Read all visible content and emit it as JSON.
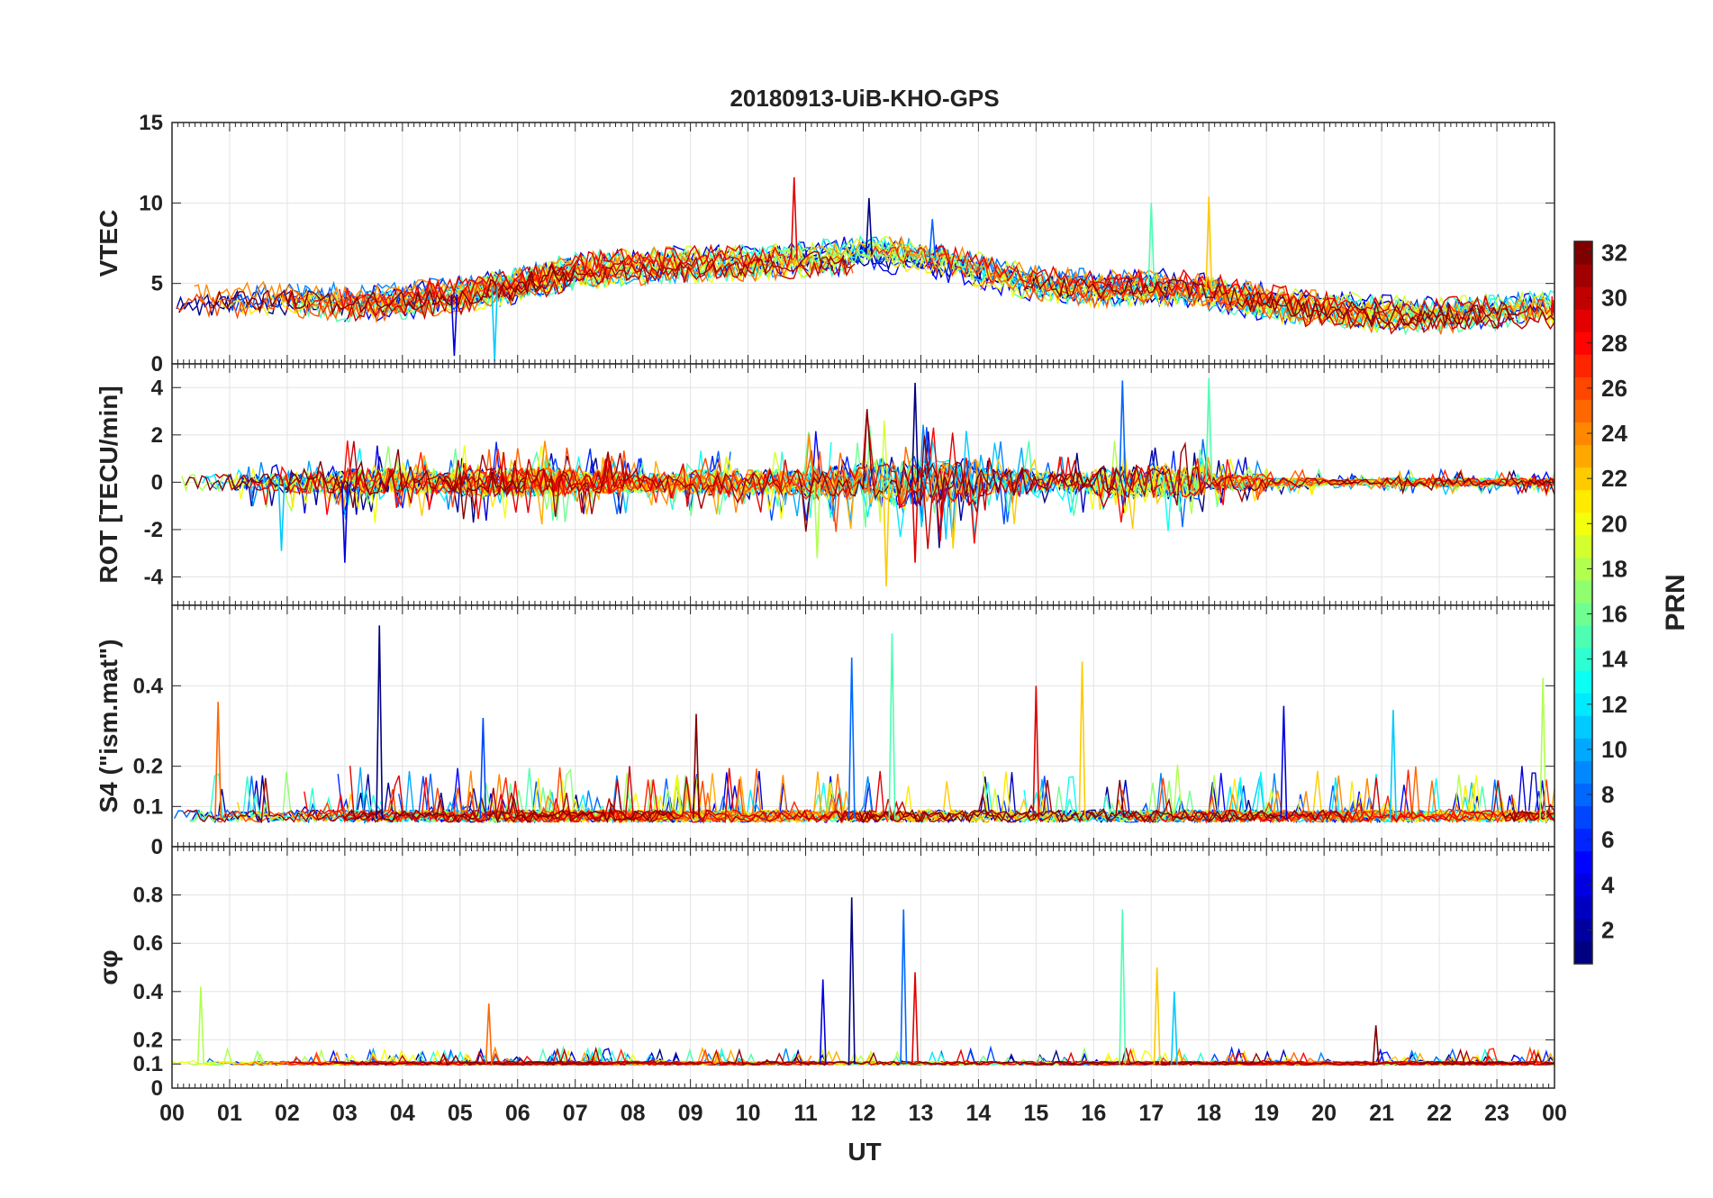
{
  "chart_data": {
    "type": "line",
    "title": "20180913-UiB-KHO-GPS",
    "xlabel": "UT",
    "x_range": [
      0,
      24
    ],
    "x_tick_labels": [
      "00",
      "01",
      "02",
      "03",
      "04",
      "05",
      "06",
      "07",
      "08",
      "09",
      "10",
      "11",
      "12",
      "13",
      "14",
      "15",
      "16",
      "17",
      "18",
      "19",
      "20",
      "21",
      "22",
      "23",
      "00"
    ],
    "colorbar": {
      "label": "PRN",
      "range": [
        1,
        32
      ],
      "tick_labels": [
        "2",
        "4",
        "6",
        "8",
        "10",
        "12",
        "14",
        "16",
        "18",
        "20",
        "22",
        "24",
        "26",
        "28",
        "30",
        "32"
      ],
      "colormap": "jet"
    },
    "panels": [
      {
        "name": "VTEC",
        "ylabel": "VTEC",
        "ylim": [
          0,
          15
        ],
        "yticks": [
          "0",
          "5",
          "10",
          "15"
        ],
        "baseline": [
          4.0,
          3.8,
          4.0,
          3.8,
          3.9,
          4.3,
          4.9,
          5.8,
          6.0,
          6.2,
          6.3,
          6.5,
          6.8,
          6.6,
          5.8,
          5.0,
          4.7,
          4.8,
          4.5,
          3.8,
          3.4,
          3.1,
          3.0,
          3.2,
          3.4
        ],
        "noise": 0.7,
        "peaks": [
          {
            "x": 12.1,
            "y": 10.3
          },
          {
            "x": 13.2,
            "y": 9.0
          },
          {
            "x": 17.0,
            "y": 10.0
          },
          {
            "x": 18.0,
            "y": 10.4
          },
          {
            "x": 10.8,
            "y": 11.6
          },
          {
            "x": 4.9,
            "y": 0.5
          },
          {
            "x": 5.6,
            "y": 0.2
          }
        ]
      },
      {
        "name": "ROT",
        "ylabel": "ROT [TECU/min]",
        "ylim": [
          -5.2,
          5.0
        ],
        "yticks": [
          "-4",
          "-2",
          "0",
          "2",
          "4"
        ],
        "centered": true,
        "amplitude": [
          0.6,
          0.6,
          0.8,
          1.0,
          0.8,
          1.0,
          1.0,
          0.8,
          0.7,
          0.9,
          0.9,
          1.2,
          1.8,
          1.6,
          1.0,
          0.8,
          1.2,
          1.2,
          0.6,
          0.3,
          0.2,
          0.3,
          0.3,
          0.3,
          0.3
        ],
        "peaks": [
          {
            "x": 12.9,
            "y": 4.2
          },
          {
            "x": 16.5,
            "y": 4.3
          },
          {
            "x": 18.0,
            "y": 4.4
          },
          {
            "x": 12.4,
            "y": -4.4
          },
          {
            "x": 12.9,
            "y": -3.4
          },
          {
            "x": 3.0,
            "y": -3.4
          },
          {
            "x": 1.9,
            "y": -2.9
          },
          {
            "x": 11.2,
            "y": -3.2
          }
        ]
      },
      {
        "name": "S4",
        "ylabel": "S4 (\"ism.mat\")",
        "ylim": [
          0,
          0.6
        ],
        "yticks": [
          "0",
          "0.1",
          "0.2",
          "0.4"
        ],
        "baseline": 0.07,
        "noise": 0.03,
        "peaks": [
          {
            "x": 3.6,
            "y": 0.55
          },
          {
            "x": 11.8,
            "y": 0.47
          },
          {
            "x": 12.5,
            "y": 0.53
          },
          {
            "x": 15.8,
            "y": 0.46
          },
          {
            "x": 15.0,
            "y": 0.4
          },
          {
            "x": 19.3,
            "y": 0.35
          },
          {
            "x": 21.2,
            "y": 0.34
          },
          {
            "x": 23.8,
            "y": 0.42
          },
          {
            "x": 0.8,
            "y": 0.36
          },
          {
            "x": 9.1,
            "y": 0.33
          },
          {
            "x": 5.4,
            "y": 0.32
          }
        ]
      },
      {
        "name": "sigma_phi",
        "ylabel": "σφ",
        "ylim": [
          0,
          1.0
        ],
        "yticks": [
          "0",
          "0.1",
          "0.2",
          "0.4",
          "0.6",
          "0.8"
        ],
        "baseline": 0.1,
        "noise": 0.015,
        "peaks": [
          {
            "x": 11.8,
            "y": 0.79
          },
          {
            "x": 12.7,
            "y": 0.74
          },
          {
            "x": 16.5,
            "y": 0.74
          },
          {
            "x": 17.1,
            "y": 0.5
          },
          {
            "x": 12.9,
            "y": 0.48
          },
          {
            "x": 11.3,
            "y": 0.45
          },
          {
            "x": 17.4,
            "y": 0.4
          },
          {
            "x": 0.5,
            "y": 0.42
          },
          {
            "x": 5.5,
            "y": 0.35
          },
          {
            "x": 20.9,
            "y": 0.26
          }
        ]
      }
    ]
  }
}
